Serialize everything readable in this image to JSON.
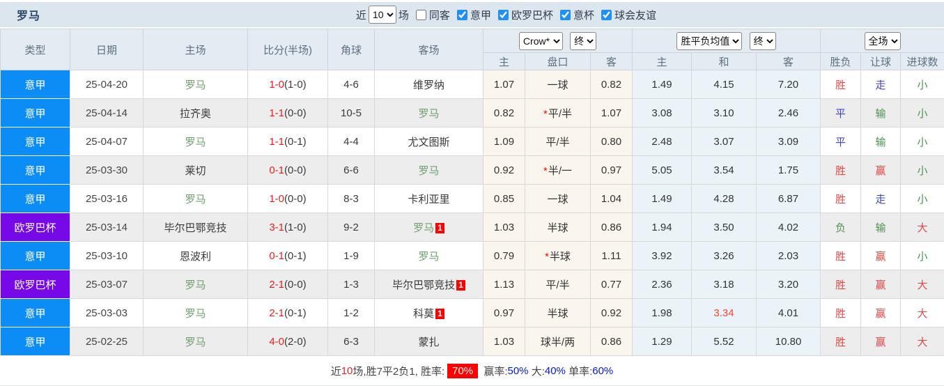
{
  "header": {
    "team": "罗马",
    "near_label": "近",
    "near_value": "10",
    "games_label": "场",
    "same_opponent_label": "同客",
    "same_opponent_checked": false,
    "filters": [
      {
        "label": "意甲",
        "checked": true
      },
      {
        "label": "欧罗巴杯",
        "checked": true
      },
      {
        "label": "意杯",
        "checked": true
      },
      {
        "label": "球会友谊",
        "checked": true
      }
    ]
  },
  "table": {
    "columns": [
      "类型",
      "日期",
      "主场",
      "比分(半场)",
      "角球",
      "客场"
    ],
    "odds_group1": {
      "select1": "Crow*",
      "select2": "终",
      "subcols": [
        "主",
        "盘口",
        "客"
      ]
    },
    "odds_group2": {
      "select1": "胜平负均值",
      "select2": "终",
      "subcols": [
        "主",
        "和",
        "客"
      ]
    },
    "result_group": {
      "select": "全场",
      "subcols": [
        "胜负",
        "让球",
        "进球数"
      ]
    },
    "rows": [
      {
        "league": "意甲",
        "date": "25-04-20",
        "home": "罗马",
        "home_self": true,
        "score": "1-0",
        "half": "(1-0)",
        "corners": "4-6",
        "away": "维罗纳",
        "away_self": false,
        "away_badge": "",
        "h_home": "1.07",
        "handicap": "一球",
        "handicap_star": false,
        "h_away": "0.82",
        "avg_home": "1.49",
        "avg_draw": "4.15",
        "avg_away": "7.20",
        "avg_draw_hot": false,
        "result": "胜",
        "handicap_result": "走",
        "goals_result": "小"
      },
      {
        "league": "意甲",
        "date": "25-04-14",
        "home": "拉齐奥",
        "home_self": false,
        "score": "1-1",
        "half": "(0-0)",
        "corners": "10-5",
        "away": "罗马",
        "away_self": true,
        "away_badge": "",
        "h_home": "0.82",
        "handicap": "平/半",
        "handicap_star": true,
        "h_away": "1.07",
        "avg_home": "3.08",
        "avg_draw": "3.10",
        "avg_away": "2.46",
        "avg_draw_hot": false,
        "result": "平",
        "handicap_result": "输",
        "goals_result": "小"
      },
      {
        "league": "意甲",
        "date": "25-04-07",
        "home": "罗马",
        "home_self": true,
        "score": "1-1",
        "half": "(0-1)",
        "corners": "4-4",
        "away": "尤文图斯",
        "away_self": false,
        "away_badge": "",
        "h_home": "1.09",
        "handicap": "平/半",
        "handicap_star": false,
        "h_away": "0.80",
        "avg_home": "2.48",
        "avg_draw": "3.07",
        "avg_away": "3.09",
        "avg_draw_hot": false,
        "result": "平",
        "handicap_result": "输",
        "goals_result": "小"
      },
      {
        "league": "意甲",
        "date": "25-03-30",
        "home": "莱切",
        "home_self": false,
        "score": "0-1",
        "half": "(0-0)",
        "corners": "6-6",
        "away": "罗马",
        "away_self": true,
        "away_badge": "",
        "h_home": "0.92",
        "handicap": "半/一",
        "handicap_star": true,
        "h_away": "0.97",
        "avg_home": "5.05",
        "avg_draw": "3.54",
        "avg_away": "1.75",
        "avg_draw_hot": false,
        "result": "胜",
        "handicap_result": "赢",
        "goals_result": "小"
      },
      {
        "league": "意甲",
        "date": "25-03-16",
        "home": "罗马",
        "home_self": true,
        "score": "1-0",
        "half": "(0-0)",
        "corners": "8-3",
        "away": "卡利亚里",
        "away_self": false,
        "away_badge": "",
        "h_home": "0.85",
        "handicap": "一球",
        "handicap_star": false,
        "h_away": "1.04",
        "avg_home": "1.49",
        "avg_draw": "4.28",
        "avg_away": "6.87",
        "avg_draw_hot": false,
        "result": "胜",
        "handicap_result": "走",
        "goals_result": "小"
      },
      {
        "league": "欧罗巴杯",
        "date": "25-03-14",
        "home": "毕尔巴鄂竞技",
        "home_self": false,
        "score": "3-1",
        "half": "(1-0)",
        "corners": "9-2",
        "away": "罗马",
        "away_self": true,
        "away_badge": "1",
        "h_home": "1.03",
        "handicap": "半球",
        "handicap_star": false,
        "h_away": "0.86",
        "avg_home": "1.94",
        "avg_draw": "3.50",
        "avg_away": "4.02",
        "avg_draw_hot": false,
        "result": "负",
        "handicap_result": "输",
        "goals_result": "大"
      },
      {
        "league": "意甲",
        "date": "25-03-10",
        "home": "恩波利",
        "home_self": false,
        "score": "0-1",
        "half": "(0-1)",
        "corners": "1-9",
        "away": "罗马",
        "away_self": true,
        "away_badge": "",
        "h_home": "0.79",
        "handicap": "半球",
        "handicap_star": true,
        "h_away": "1.11",
        "avg_home": "3.92",
        "avg_draw": "3.26",
        "avg_away": "2.03",
        "avg_draw_hot": false,
        "result": "胜",
        "handicap_result": "赢",
        "goals_result": "小"
      },
      {
        "league": "欧罗巴杯",
        "date": "25-03-07",
        "home": "罗马",
        "home_self": true,
        "score": "2-1",
        "half": "(0-0)",
        "corners": "1-3",
        "away": "毕尔巴鄂竞技",
        "away_self": false,
        "away_badge": "1",
        "h_home": "1.13",
        "handicap": "平/半",
        "handicap_star": false,
        "h_away": "0.77",
        "avg_home": "2.36",
        "avg_draw": "3.18",
        "avg_away": "3.20",
        "avg_draw_hot": false,
        "result": "胜",
        "handicap_result": "赢",
        "goals_result": "大"
      },
      {
        "league": "意甲",
        "date": "25-03-03",
        "home": "罗马",
        "home_self": true,
        "score": "2-1",
        "half": "(0-1)",
        "corners": "1-2",
        "away": "科莫",
        "away_self": false,
        "away_badge": "1",
        "h_home": "0.97",
        "handicap": "半球",
        "handicap_star": false,
        "h_away": "0.92",
        "avg_home": "1.98",
        "avg_draw": "3.34",
        "avg_away": "4.01",
        "avg_draw_hot": true,
        "result": "胜",
        "handicap_result": "赢",
        "goals_result": "大"
      },
      {
        "league": "意甲",
        "date": "25-02-25",
        "home": "罗马",
        "home_self": true,
        "score": "4-0",
        "half": "(2-0)",
        "corners": "6-3",
        "away": "蒙扎",
        "away_self": false,
        "away_badge": "",
        "h_home": "1.03",
        "handicap": "球半/两",
        "handicap_star": false,
        "h_away": "0.86",
        "avg_home": "1.29",
        "avg_draw": "5.52",
        "avg_away": "10.80",
        "avg_draw_hot": false,
        "result": "胜",
        "handicap_result": "赢",
        "goals_result": "大"
      }
    ]
  },
  "footer": {
    "near_label": "近",
    "near_count": "10",
    "games_suffix": "场,",
    "record": "胜7平2负1, ",
    "win_rate_label": "胜率:",
    "win_rate": "70%",
    "profit_label": " 赢率:",
    "profit_rate": "50%",
    "big_label": " 大:",
    "big_rate": "40%",
    "single_label": " 单率:",
    "single_rate": "60%"
  },
  "colors": {
    "league": {
      "意甲": "#0c8cf5",
      "欧罗巴杯": "#7708e8"
    },
    "outcome": {
      "胜": "#dd4a4a",
      "平": "#4343c8",
      "负": "#4e9150",
      "走": "#4343c8",
      "输": "#4e9150",
      "赢": "#dd4a4a",
      "小": "#4e9150",
      "大": "#dd4a4a"
    },
    "team_self": "#6f9e6f",
    "score": "#f21c1c",
    "odd_highlight": "#ff4433"
  }
}
